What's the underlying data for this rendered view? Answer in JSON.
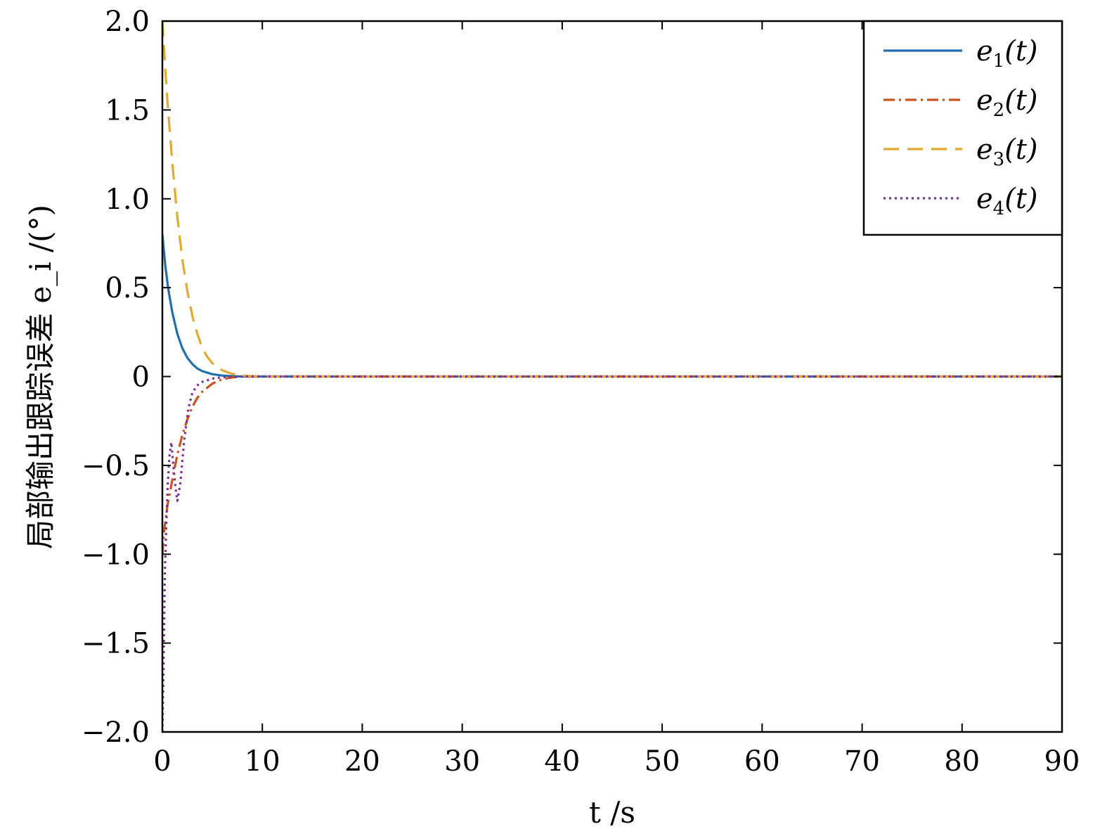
{
  "chart_data": {
    "type": "line",
    "xlabel": "t /s",
    "ylabel": "局部输出跟踪误差 e_i /(°)",
    "xlim": [
      0,
      90
    ],
    "ylim": [
      -2.0,
      2.0
    ],
    "xticks": [
      0,
      10,
      20,
      30,
      40,
      50,
      60,
      70,
      80,
      90
    ],
    "xtick_labels": [
      "0",
      "10",
      "20",
      "30",
      "40",
      "50",
      "60",
      "70",
      "80",
      "90"
    ],
    "yticks": [
      -2.0,
      -1.5,
      -1.0,
      -0.5,
      0,
      0.5,
      1.0,
      1.5,
      2.0
    ],
    "ytick_labels": [
      "−2.0",
      "−1.5",
      "−1.0",
      "−0.5",
      "0",
      "0.5",
      "1.0",
      "1.5",
      "2.0"
    ],
    "grid": false,
    "legend_position": "top-right",
    "series": [
      {
        "name": "e1(t)",
        "name_parts": [
          "e",
          "1",
          "(t)"
        ],
        "color": "#1f6fae",
        "dash": "solid",
        "x": [
          0,
          0.3,
          0.6,
          1,
          1.5,
          2,
          2.5,
          3,
          3.5,
          4,
          5,
          6,
          7,
          8,
          10,
          20,
          90
        ],
        "y": [
          0.8,
          0.62,
          0.49,
          0.36,
          0.24,
          0.16,
          0.105,
          0.07,
          0.045,
          0.03,
          0.013,
          0.005,
          0.002,
          0.0,
          0.0,
          0.0,
          0.0
        ]
      },
      {
        "name": "e2(t)",
        "name_parts": [
          "e",
          "2",
          "(t)"
        ],
        "color": "#c9521c",
        "dash": "dashdot",
        "x": [
          0,
          0.2,
          0.5,
          1,
          1.5,
          2,
          2.5,
          3,
          3.5,
          4,
          5,
          6,
          7,
          8,
          10,
          20,
          90
        ],
        "y": [
          -1.0,
          -0.86,
          -0.73,
          -0.58,
          -0.44,
          -0.33,
          -0.24,
          -0.17,
          -0.12,
          -0.085,
          -0.04,
          -0.015,
          -0.005,
          0.0,
          0.0,
          0.0,
          0.0
        ]
      },
      {
        "name": "e3(t)",
        "name_parts": [
          "e",
          "3",
          "(t)"
        ],
        "color": "#e2a92f",
        "dash": "dashed",
        "x": [
          0,
          0.3,
          0.6,
          1,
          1.5,
          2,
          2.5,
          3,
          3.5,
          4,
          4.5,
          5,
          6,
          7,
          8,
          10,
          20,
          90
        ],
        "y": [
          2.0,
          1.72,
          1.48,
          1.2,
          0.9,
          0.66,
          0.48,
          0.34,
          0.24,
          0.16,
          0.11,
          0.075,
          0.035,
          0.015,
          0.005,
          0.0,
          0.0,
          0.0
        ]
      },
      {
        "name": "e4(t)",
        "name_parts": [
          "e",
          "4",
          "(t)"
        ],
        "color": "#7b3294",
        "dash": "dotted",
        "x": [
          0,
          0.1,
          0.25,
          0.4,
          0.55,
          0.7,
          0.9,
          1.1,
          1.3,
          1.5,
          1.8,
          2.2,
          2.6,
          3,
          3.5,
          4,
          5,
          6,
          7,
          8,
          10,
          20,
          90
        ],
        "y": [
          -2.0,
          -1.7,
          -1.1,
          -0.82,
          -0.6,
          -0.45,
          -0.37,
          -0.5,
          -0.62,
          -0.7,
          -0.6,
          -0.35,
          -0.18,
          -0.09,
          -0.05,
          -0.03,
          -0.012,
          -0.004,
          -0.001,
          0.0,
          0.0,
          0.0,
          0.0
        ]
      }
    ]
  }
}
